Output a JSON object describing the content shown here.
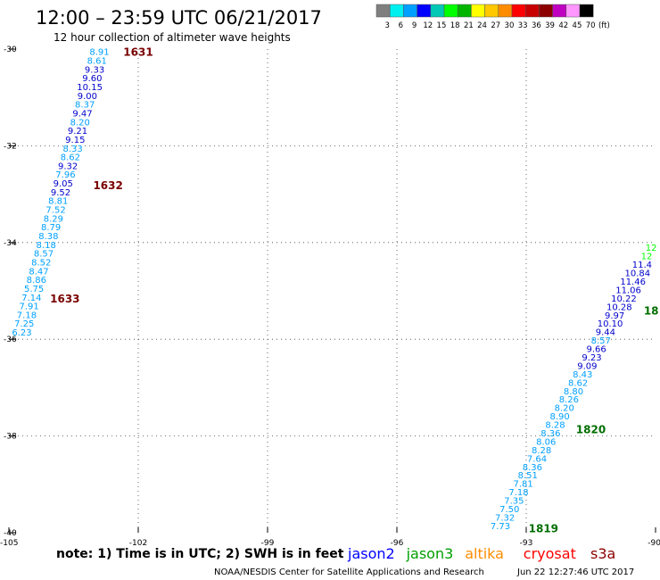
{
  "header": {
    "title": "12:00 – 23:59 UTC 06/21/2017",
    "subtitle": "12 hour collection of altimeter wave heights"
  },
  "color_scale": {
    "colors": [
      "#7f7f7f",
      "#00f0f0",
      "#00a0ff",
      "#0000ff",
      "#00c8b4",
      "#00ff00",
      "#00b400",
      "#ffff00",
      "#ffc800",
      "#ff8c00",
      "#ff0000",
      "#c80000",
      "#8c0000",
      "#c000c0",
      "#ff96ff",
      "#000000"
    ],
    "labels": [
      "3",
      "6",
      "9",
      "12",
      "15",
      "18",
      "21",
      "24",
      "27",
      "30",
      "33",
      "36",
      "39",
      "42",
      "45",
      "70",
      "(ft)"
    ]
  },
  "axes": {
    "lon_ticks": [
      "-105",
      "-102",
      "-99",
      "-96",
      "-93",
      "-90"
    ],
    "lat_ticks": [
      "-30",
      "-32",
      "-34",
      "-36",
      "-38",
      "-40"
    ]
  },
  "chart_data": {
    "type": "scatter",
    "xlim": [
      -105,
      -90
    ],
    "ylim": [
      -40,
      -30
    ],
    "grid": "dotted",
    "tracks": [
      {
        "id": "west",
        "lon_start": -102.9,
        "lat_start": -30.05,
        "lon_end": -104.7,
        "lat_end": -35.85,
        "values": [
          "8.91",
          "8.61",
          "9.33",
          "9.60",
          "10.15",
          "9.00",
          "8.37",
          "9.47",
          "8.20",
          "9.21",
          "9.15",
          "8.33",
          "8.62",
          "9.32",
          "7.96",
          "9.05",
          "9.52",
          "8.81",
          "7.52",
          "8.29",
          "8.79",
          "8.38",
          "8.18",
          "8.57",
          "8.52",
          "8.47",
          "8.86",
          "5.75",
          "7.14",
          "7.91",
          "7.18",
          "7.25",
          "6.23"
        ]
      },
      {
        "id": "east",
        "lon_start": -90.1,
        "lat_start": -34.1,
        "lon_end": -93.6,
        "lat_end": -39.85,
        "values": [
          "12",
          "12",
          "11.4",
          "10.84",
          "11.46",
          "11.06",
          "10.22",
          "10.28",
          "9.97",
          "10.10",
          "9.44",
          "8.57",
          "9.66",
          "9.23",
          "9.09",
          "8.43",
          "8.62",
          "8.80",
          "8.26",
          "8.20",
          "8.90",
          "8.28",
          "8.36",
          "8.06",
          "8.28",
          "7.64",
          "8.36",
          "8.51",
          "7.81",
          "7.18",
          "7.35",
          "7.50",
          "7.32",
          "7.73"
        ]
      }
    ],
    "times": [
      {
        "label": "1631",
        "lon": -102.0,
        "lat": -30.05,
        "color": "#7a0000"
      },
      {
        "label": "1632",
        "lon": -102.7,
        "lat": -32.8,
        "color": "#7a0000"
      },
      {
        "label": "1633",
        "lon": -103.7,
        "lat": -35.15,
        "color": "#7a0000"
      },
      {
        "label": "18",
        "lon": -90.1,
        "lat": -35.4,
        "color": "#006e00"
      },
      {
        "label": "1820",
        "lon": -91.5,
        "lat": -37.85,
        "color": "#006e00"
      },
      {
        "label": "1819",
        "lon": -92.6,
        "lat": -39.9,
        "color": "#006e00"
      }
    ]
  },
  "footer": {
    "note": "note:  1) Time is in UTC; 2) SWH is in feet",
    "legend": [
      {
        "name": "jason2",
        "color": "#0000ff"
      },
      {
        "name": "jason3",
        "color": "#00a000"
      },
      {
        "name": "altika",
        "color": "#ff8c00"
      },
      {
        "name": "cryosat",
        "color": "#ff0000"
      },
      {
        "name": "s3a",
        "color": "#8c0000"
      }
    ],
    "credit": "NOAA/NESDIS Center for Satellite Applications and Research",
    "timestamp": "Jun 22 12:27:46 UTC 2017"
  }
}
